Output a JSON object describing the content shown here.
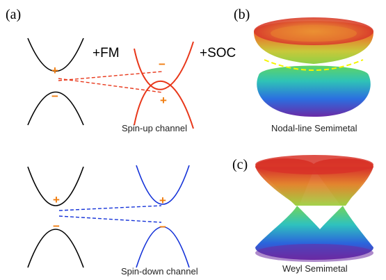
{
  "panels": {
    "a": "(a)",
    "b": "(b)",
    "c": "(c)"
  },
  "operations": {
    "fm": "+FM",
    "soc": "+SOC"
  },
  "channels": {
    "up": "Spin-up channel",
    "down": "Spin-down channel"
  },
  "semimetals": {
    "nodal_line": "Nodal-line Semimetal",
    "weyl": "Weyl Semimetal"
  },
  "signs": {
    "plus": "+",
    "minus": "−"
  },
  "colors": {
    "band": "#000000",
    "spin_up": "#e8371a",
    "spin_down": "#1432d8",
    "parity_sign": "#f07d10",
    "nodal_line": "#f5f500"
  }
}
